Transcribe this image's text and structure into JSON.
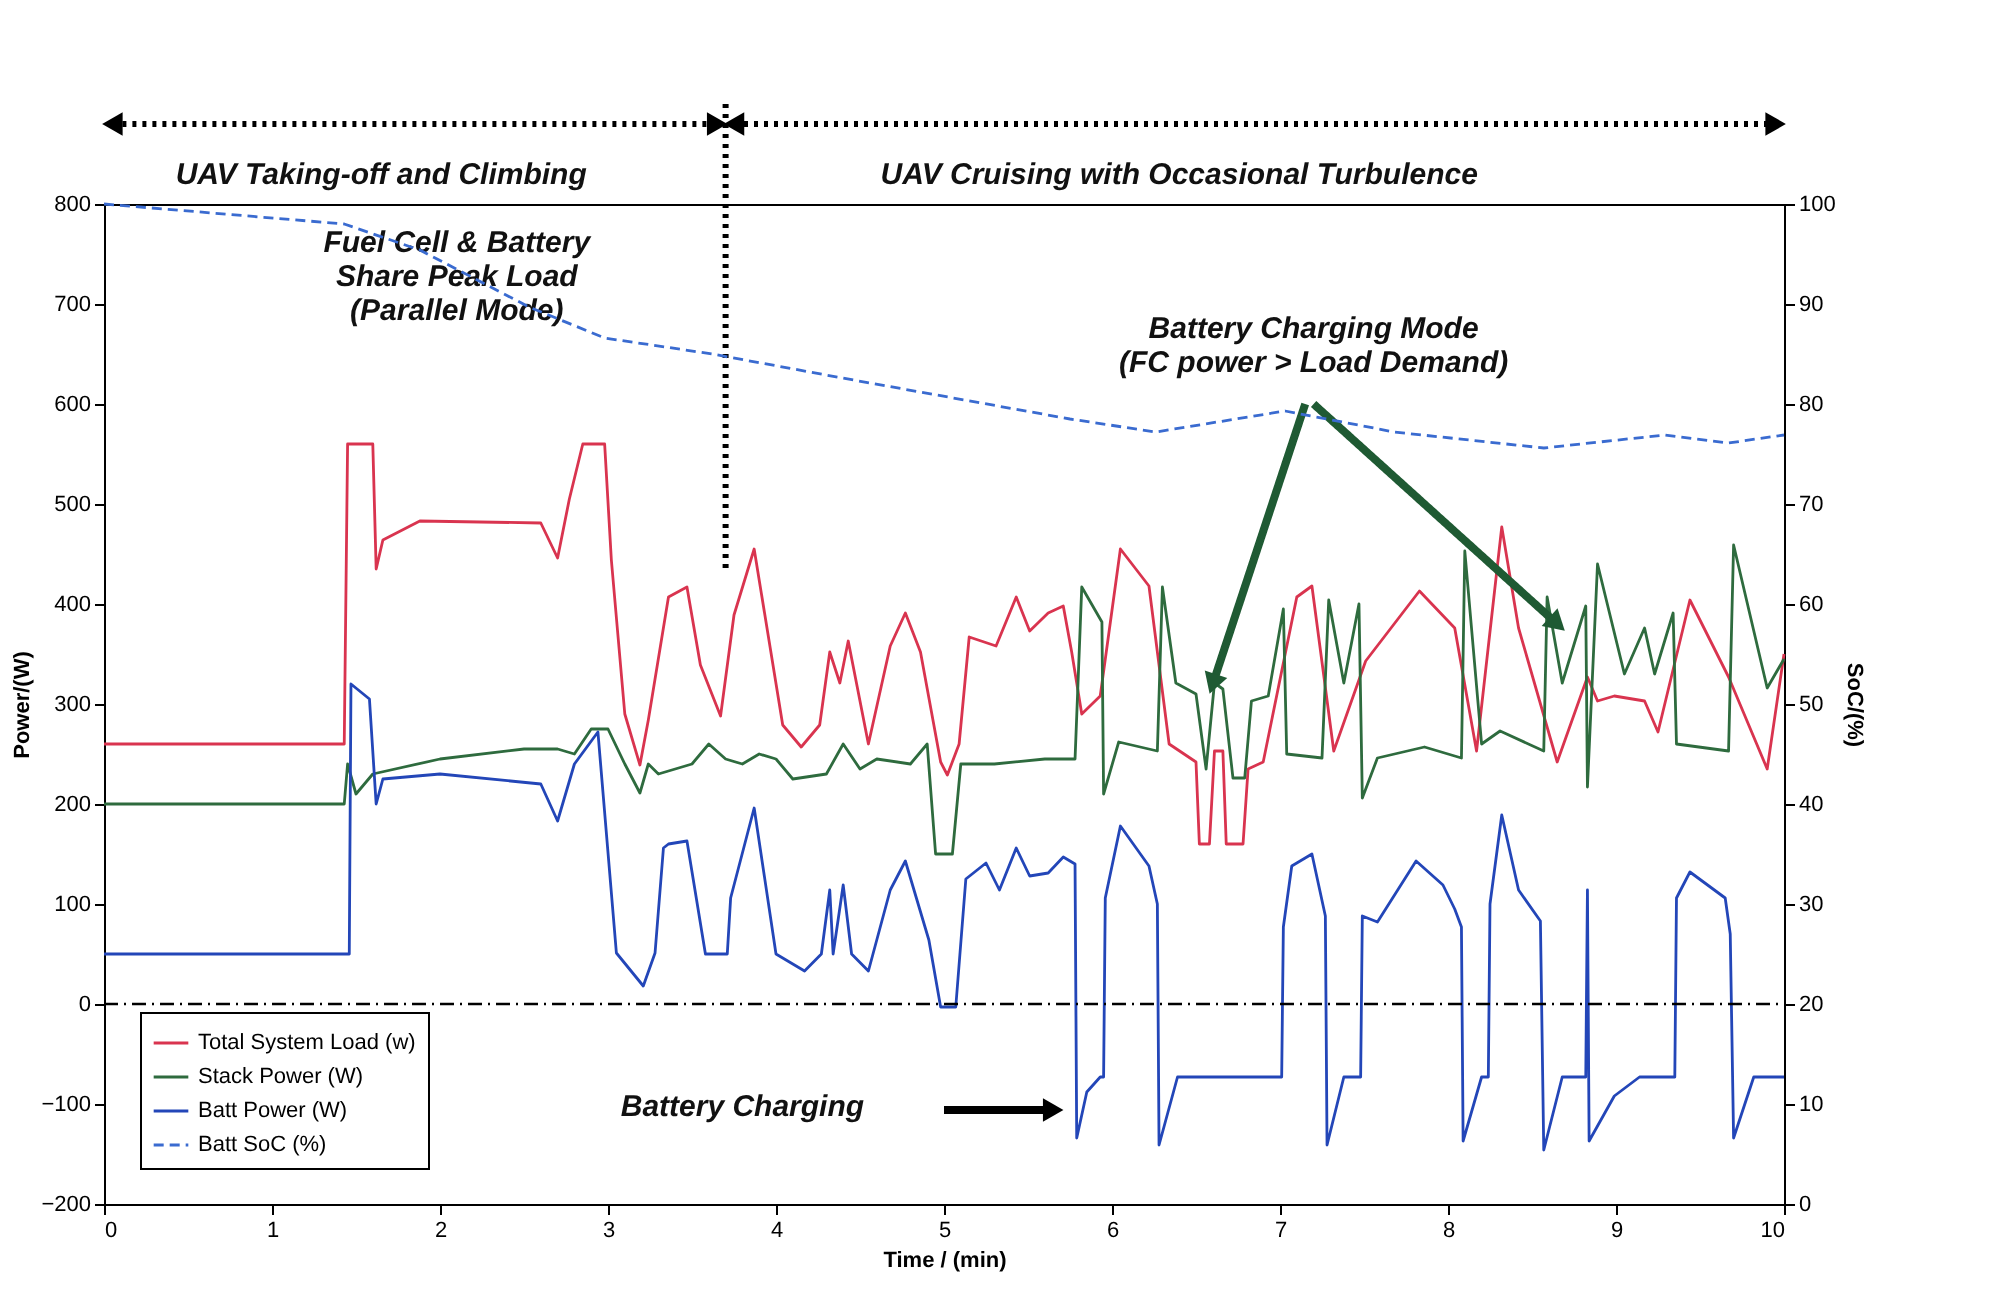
{
  "chart_data": {
    "type": "line",
    "xlabel": "Time / (min)",
    "ylabel": "Power/(W)",
    "y2label": "SoC/(%)",
    "xlim": [
      0,
      10
    ],
    "xticks": [
      0,
      1,
      2,
      3,
      4,
      5,
      6,
      7,
      8,
      9,
      10
    ],
    "ylim": [
      -200,
      800
    ],
    "yticks": [
      -200,
      -100,
      0,
      100,
      200,
      300,
      400,
      500,
      600,
      700,
      800
    ],
    "y2lim": [
      0,
      100
    ],
    "y2ticks": [
      0,
      10,
      20,
      30,
      40,
      50,
      60,
      70,
      80,
      90,
      100
    ],
    "legend": "bottom left",
    "marker": "none",
    "series": [
      {
        "name": "Total System Load (w)",
        "color": "#d9344f",
        "x": [
          0,
          1.43,
          1.45,
          1.6,
          1.62,
          1.66,
          1.88,
          2.6,
          2.7,
          2.77,
          2.85,
          2.98,
          3.02,
          3.1,
          3.19,
          3.24,
          3.36,
          3.47,
          3.55,
          3.67,
          3.75,
          3.87,
          4.04,
          4.15,
          4.26,
          4.32,
          4.38,
          4.43,
          4.55,
          4.68,
          4.77,
          4.86,
          4.98,
          5.02,
          5.09,
          5.15,
          5.31,
          5.43,
          5.51,
          5.62,
          5.71,
          5.76,
          5.82,
          5.93,
          6.05,
          6.22,
          6.34,
          6.5,
          6.52,
          6.58,
          6.61,
          6.66,
          6.68,
          6.78,
          6.81,
          6.9,
          7.1,
          7.19,
          7.32,
          7.51,
          7.83,
          8.04,
          8.17,
          8.32,
          8.42,
          8.65,
          8.83,
          8.89,
          8.99,
          9.17,
          9.25,
          9.44,
          9.67,
          9.9,
          10
        ],
        "values": [
          260,
          260,
          560,
          560,
          435,
          464,
          483,
          481,
          446,
          505,
          560,
          560,
          444,
          290,
          239,
          284,
          407,
          417,
          339,
          288,
          389,
          455,
          279,
          257,
          279,
          352,
          321,
          363,
          260,
          358,
          391,
          352,
          242,
          229,
          260,
          367,
          358,
          407,
          373,
          391,
          398,
          352,
          290,
          308,
          455,
          418,
          260,
          242,
          160,
          160,
          253,
          253,
          160,
          160,
          235,
          242,
          407,
          418,
          253,
          343,
          413,
          376,
          253,
          477,
          376,
          242,
          327,
          303,
          308,
          303,
          272,
          404,
          327,
          235,
          350
        ]
      },
      {
        "name": "Stack Power (W)",
        "color": "#2e6b3e",
        "x": [
          0,
          1.43,
          1.45,
          1.5,
          1.6,
          2.0,
          2.5,
          2.7,
          2.8,
          2.9,
          3.0,
          3.1,
          3.19,
          3.24,
          3.3,
          3.5,
          3.6,
          3.7,
          3.8,
          3.9,
          4.0,
          4.1,
          4.3,
          4.4,
          4.5,
          4.6,
          4.8,
          4.9,
          4.95,
          5.05,
          5.1,
          5.3,
          5.6,
          5.78,
          5.82,
          5.94,
          5.95,
          6.04,
          6.27,
          6.3,
          6.38,
          6.5,
          6.56,
          6.61,
          6.66,
          6.72,
          6.79,
          6.83,
          6.93,
          7.02,
          7.04,
          7.25,
          7.29,
          7.38,
          7.47,
          7.49,
          7.58,
          7.86,
          8.08,
          8.1,
          8.2,
          8.31,
          8.57,
          8.59,
          8.68,
          8.82,
          8.83,
          8.89,
          9.05,
          9.17,
          9.23,
          9.34,
          9.36,
          9.67,
          9.7,
          9.9,
          10
        ],
        "values": [
          200,
          200,
          240,
          210,
          230,
          245,
          255,
          255,
          250,
          275,
          275,
          240,
          211,
          240,
          230,
          240,
          260,
          245,
          240,
          250,
          245,
          225,
          230,
          260,
          235,
          245,
          240,
          260,
          150,
          150,
          240,
          240,
          245,
          245,
          417,
          382,
          210,
          262,
          253,
          417,
          321,
          310,
          235,
          321,
          315,
          226,
          226,
          303,
          308,
          395,
          250,
          246,
          404,
          321,
          400,
          206,
          246,
          257,
          246,
          453,
          260,
          273,
          253,
          407,
          321,
          398,
          217,
          440,
          330,
          376,
          330,
          391,
          260,
          253,
          459,
          316,
          345
        ]
      },
      {
        "name": "Batt Power (W)",
        "color": "#2346b8",
        "x": [
          0,
          1.46,
          1.47,
          1.58,
          1.62,
          1.66,
          2.0,
          2.6,
          2.7,
          2.8,
          2.94,
          3.05,
          3.21,
          3.28,
          3.33,
          3.36,
          3.47,
          3.58,
          3.71,
          3.73,
          3.87,
          4.0,
          4.17,
          4.27,
          4.32,
          4.34,
          4.4,
          4.45,
          4.55,
          4.68,
          4.77,
          4.91,
          4.98,
          5.07,
          5.13,
          5.25,
          5.33,
          5.43,
          5.51,
          5.62,
          5.71,
          5.78,
          5.79,
          5.85,
          5.93,
          5.95,
          5.96,
          6.05,
          6.22,
          6.27,
          6.28,
          6.39,
          7.01,
          7.02,
          7.07,
          7.19,
          7.27,
          7.28,
          7.38,
          7.48,
          7.49,
          7.58,
          7.81,
          7.97,
          8.04,
          8.08,
          8.09,
          8.2,
          8.24,
          8.25,
          8.32,
          8.42,
          8.55,
          8.57,
          8.68,
          8.82,
          8.83,
          8.84,
          8.99,
          9.14,
          9.35,
          9.36,
          9.44,
          9.65,
          9.68,
          9.7,
          9.82,
          10
        ],
        "values": [
          50,
          50,
          320,
          305,
          200,
          225,
          230,
          220,
          183,
          240,
          272,
          51,
          18,
          51,
          156,
          160,
          163,
          50,
          50,
          106,
          196,
          50,
          33,
          50,
          114,
          50,
          119,
          50,
          33,
          114,
          143,
          64,
          -3,
          -3,
          125,
          141,
          114,
          156,
          128,
          131,
          147,
          140,
          -134,
          -88,
          -73,
          -73,
          106,
          178,
          138,
          100,
          -141,
          -73,
          -73,
          77,
          138,
          150,
          88,
          -141,
          -73,
          -73,
          88,
          82,
          143,
          119,
          95,
          77,
          -137,
          -73,
          -73,
          100,
          189,
          114,
          83,
          -146,
          -73,
          -73,
          114,
          -137,
          -92,
          -73,
          -73,
          106,
          132,
          106,
          70,
          -134,
          -73,
          -73
        ]
      },
      {
        "name": "Batt SoC (%)",
        "color": "#3a6bd0",
        "axis": "y2",
        "line_style": "dashed",
        "x": [
          0,
          1.43,
          1.88,
          2.53,
          2.98,
          3.62,
          4.46,
          5.75,
          6.26,
          7.03,
          7.68,
          8.57,
          9.29,
          9.67,
          10
        ],
        "values": [
          100,
          98,
          95.4,
          89.7,
          86.6,
          85,
          82.4,
          78.5,
          77.2,
          79.3,
          77.2,
          75.6,
          76.9,
          76.1,
          76.9
        ]
      }
    ],
    "ref_lines": [
      {
        "axis": "y",
        "value": 0,
        "color": "#000000",
        "line_style": "dashdot"
      },
      {
        "axis": "x",
        "value": 3.7,
        "color": "#000000",
        "line_style": "dotted"
      }
    ],
    "annotations": [
      "UAV Taking-off and Climbing",
      "UAV Cruising with Occasional Turbulence",
      "Fuel Cell & Battery\nShare Peak Load\n(Parallel Mode)",
      {
        "text": "Battery Charging Mode\n(FC power > Load Demand)",
        "x": 6.6,
        "y": 320
      },
      "Battery Charging"
    ]
  }
}
